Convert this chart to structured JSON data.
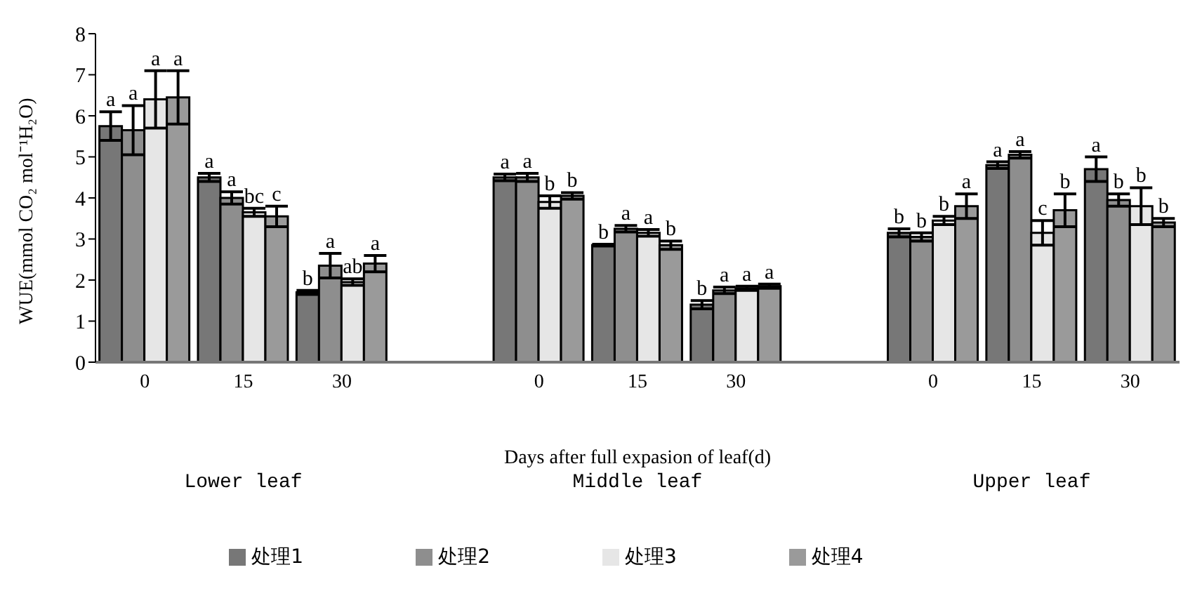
{
  "chart_data": {
    "type": "bar",
    "ylabel": "WUE(mmol CO₂ mol⁻¹H₂O)",
    "xlabel": "Days after full expasion of leaf(d)",
    "categories": [
      "0",
      "15",
      "30",
      null,
      "0",
      "15",
      "30",
      null,
      "0",
      "15",
      "30"
    ],
    "ylim": [
      0,
      8
    ],
    "yticks": [
      0,
      1,
      2,
      3,
      4,
      5,
      6,
      7,
      8
    ],
    "grid": false,
    "legend": "bottom",
    "series": [
      {
        "name": "处理1",
        "color": "#777777",
        "values": [
          5.75,
          4.5,
          1.7,
          null,
          4.5,
          2.85,
          1.4,
          null,
          3.15,
          4.8,
          4.7
        ],
        "errors": [
          0.35,
          0.1,
          0.05,
          null,
          0.08,
          0.02,
          0.1,
          null,
          0.1,
          0.08,
          0.3
        ],
        "value_labels": [
          "a",
          "a",
          "b",
          null,
          "a",
          "b",
          "b",
          null,
          "b",
          "a",
          "a"
        ]
      },
      {
        "name": "处理2",
        "color": "#8e8e8e",
        "values": [
          5.65,
          4.0,
          2.35,
          null,
          4.5,
          3.25,
          1.75,
          null,
          3.05,
          5.05,
          3.95
        ],
        "errors": [
          0.6,
          0.15,
          0.3,
          null,
          0.1,
          0.08,
          0.08,
          null,
          0.1,
          0.08,
          0.15
        ],
        "value_labels": [
          "a",
          "a",
          "a",
          null,
          "a",
          "a",
          "a",
          null,
          "b",
          "a",
          "b"
        ]
      },
      {
        "name": "处理3",
        "color": "#e6e6e6",
        "values": [
          6.4,
          3.65,
          1.95,
          null,
          3.9,
          3.15,
          1.8,
          null,
          3.45,
          3.15,
          3.8
        ],
        "errors": [
          0.7,
          0.1,
          0.08,
          null,
          0.15,
          0.08,
          0.05,
          null,
          0.1,
          0.3,
          0.45
        ],
        "value_labels": [
          "a",
          "bc",
          "ab",
          null,
          "b",
          "a",
          "a",
          null,
          "b",
          "c",
          "b"
        ]
      },
      {
        "name": "处理4",
        "color": "#9a9a9a",
        "values": [
          6.45,
          3.55,
          2.4,
          null,
          4.05,
          2.85,
          1.85,
          null,
          3.8,
          3.7,
          3.4
        ],
        "errors": [
          0.65,
          0.25,
          0.2,
          null,
          0.08,
          0.1,
          0.05,
          null,
          0.3,
          0.4,
          0.1
        ],
        "value_labels": [
          "a",
          "c",
          "a",
          null,
          "b",
          "b",
          "a",
          null,
          "a",
          "b",
          "b"
        ]
      }
    ],
    "annotations": [
      "Lower leaf",
      "Middle leaf",
      "Upper leaf"
    ]
  }
}
